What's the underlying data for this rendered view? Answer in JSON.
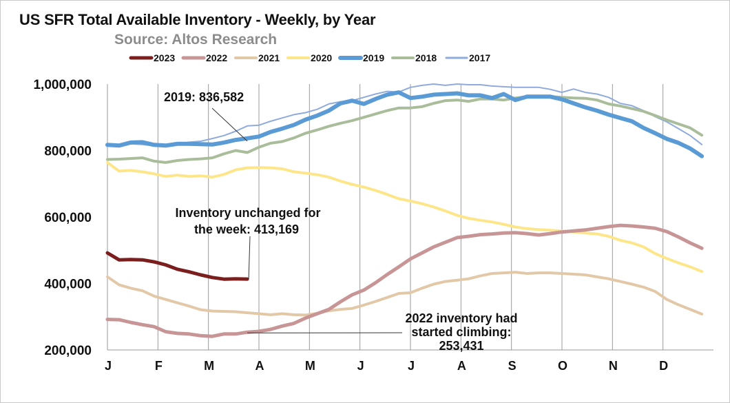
{
  "header": {
    "title": "US SFR Total Available Inventory - Weekly, by Year",
    "subtitle": "Source: Altos Research"
  },
  "chart_data": {
    "type": "line",
    "title": "US SFR Total Available Inventory - Weekly, by Year",
    "subtitle": "Source: Altos Research",
    "ylim": [
      200000,
      1000000
    ],
    "yticks": [
      200000,
      400000,
      600000,
      800000,
      1000000
    ],
    "ytick_labels": [
      "200,000",
      "400,000",
      "600,000",
      "800,000",
      "1,000,000"
    ],
    "xlim": [
      0,
      52
    ],
    "xtick_labels": [
      "J",
      "F",
      "M",
      "A",
      "M",
      "J",
      "J",
      "A",
      "S",
      "O",
      "N",
      "D"
    ],
    "x_unit": "week of year",
    "grid": "vertical month lines",
    "legend_position": "top",
    "series": [
      {
        "name": "2023",
        "color": "#7a1e1e",
        "width": 5,
        "x": [
          0,
          1,
          2,
          3,
          4,
          5,
          6,
          7,
          8,
          9,
          10,
          11,
          12
        ],
        "values": [
          492000,
          471000,
          472000,
          471000,
          465000,
          456000,
          443000,
          435000,
          426000,
          418000,
          413000,
          414000,
          413169
        ]
      },
      {
        "name": "2022",
        "color": "#c89596",
        "width": 5,
        "x": [
          0,
          1,
          2,
          3,
          4,
          5,
          6,
          7,
          8,
          9,
          10,
          11,
          12,
          13,
          14,
          15,
          16,
          17,
          18,
          19,
          20,
          21,
          22,
          23,
          24,
          25,
          26,
          27,
          28,
          29,
          30,
          31,
          32,
          33,
          34,
          35,
          36,
          37,
          38,
          39,
          40,
          41,
          42,
          43,
          44,
          45,
          46,
          47,
          48,
          49,
          50,
          51
        ],
        "values": [
          292000,
          291000,
          283000,
          276000,
          270000,
          255000,
          250000,
          248000,
          243000,
          241000,
          248000,
          248000,
          253431,
          256000,
          262000,
          272000,
          280000,
          296000,
          309000,
          322000,
          345000,
          366000,
          380000,
          402000,
          427000,
          450000,
          474000,
          492000,
          510000,
          524000,
          538000,
          542000,
          547000,
          549000,
          552000,
          553000,
          550000,
          546000,
          550000,
          555000,
          558000,
          561000,
          566000,
          571000,
          575000,
          573000,
          570000,
          566000,
          556000,
          540000,
          522000,
          506000
        ]
      },
      {
        "name": "2021",
        "color": "#e3c8a8",
        "width": 4,
        "x": [
          0,
          1,
          2,
          3,
          4,
          5,
          6,
          7,
          8,
          9,
          10,
          11,
          12,
          13,
          14,
          15,
          16,
          17,
          18,
          19,
          20,
          21,
          22,
          23,
          24,
          25,
          26,
          27,
          28,
          29,
          30,
          31,
          32,
          33,
          34,
          35,
          36,
          37,
          38,
          39,
          40,
          41,
          42,
          43,
          44,
          45,
          46,
          47,
          48,
          49,
          50,
          51
        ],
        "values": [
          420000,
          396000,
          386000,
          378000,
          362000,
          352000,
          342000,
          332000,
          321000,
          317000,
          316000,
          315000,
          312000,
          309000,
          306000,
          309000,
          306000,
          305000,
          310000,
          318000,
          322000,
          325000,
          335000,
          346000,
          358000,
          370000,
          372000,
          386000,
          398000,
          406000,
          410000,
          414000,
          423000,
          430000,
          432000,
          434000,
          430000,
          432000,
          432000,
          430000,
          428000,
          426000,
          420000,
          414000,
          406000,
          398000,
          389000,
          376000,
          352000,
          336000,
          322000,
          308000
        ]
      },
      {
        "name": "2020",
        "color": "#fde68a",
        "width": 4,
        "x": [
          0,
          1,
          2,
          3,
          4,
          5,
          6,
          7,
          8,
          9,
          10,
          11,
          12,
          13,
          14,
          15,
          16,
          17,
          18,
          19,
          20,
          21,
          22,
          23,
          24,
          25,
          26,
          27,
          28,
          29,
          30,
          31,
          32,
          33,
          34,
          35,
          36,
          37,
          38,
          39,
          40,
          41,
          42,
          43,
          44,
          45,
          46,
          47,
          48,
          49,
          50,
          51
        ],
        "values": [
          764000,
          738000,
          740000,
          736000,
          730000,
          722000,
          726000,
          722000,
          724000,
          720000,
          728000,
          742000,
          748000,
          749000,
          748000,
          745000,
          736000,
          732000,
          727000,
          720000,
          708000,
          698000,
          690000,
          680000,
          668000,
          655000,
          648000,
          640000,
          630000,
          618000,
          605000,
          596000,
          590000,
          585000,
          578000,
          570000,
          565000,
          562000,
          560000,
          558000,
          555000,
          552000,
          549000,
          542000,
          530000,
          522000,
          510000,
          490000,
          475000,
          462000,
          450000,
          436000
        ]
      },
      {
        "name": "2019",
        "color": "#5b9bd5",
        "width": 6,
        "x": [
          0,
          1,
          2,
          3,
          4,
          5,
          6,
          7,
          8,
          9,
          10,
          11,
          12,
          13,
          14,
          15,
          16,
          17,
          18,
          19,
          20,
          21,
          22,
          23,
          24,
          25,
          26,
          27,
          28,
          29,
          30,
          31,
          32,
          33,
          34,
          35,
          36,
          37,
          38,
          39,
          40,
          41,
          42,
          43,
          44,
          45,
          46,
          47,
          48,
          49,
          50,
          51
        ],
        "values": [
          817000,
          815000,
          824000,
          825000,
          817000,
          815000,
          820000,
          820000,
          819000,
          818000,
          824000,
          832000,
          836582,
          842000,
          856000,
          866000,
          877000,
          893000,
          905000,
          920000,
          942000,
          950000,
          940000,
          955000,
          968000,
          975000,
          958000,
          962000,
          968000,
          970000,
          972000,
          966000,
          966000,
          958000,
          970000,
          952000,
          962000,
          962000,
          962000,
          954000,
          942000,
          930000,
          920000,
          908000,
          898000,
          888000,
          868000,
          852000,
          835000,
          823000,
          806000,
          783000
        ]
      },
      {
        "name": "2018",
        "color": "#a9bd9b",
        "width": 4,
        "x": [
          0,
          1,
          2,
          3,
          4,
          5,
          6,
          7,
          8,
          9,
          10,
          11,
          12,
          13,
          14,
          15,
          16,
          17,
          18,
          19,
          20,
          21,
          22,
          23,
          24,
          25,
          26,
          27,
          28,
          29,
          30,
          31,
          32,
          33,
          34,
          35,
          36,
          37,
          38,
          39,
          40,
          41,
          42,
          43,
          44,
          45,
          46,
          47,
          48,
          49,
          50,
          51
        ],
        "values": [
          773000,
          774000,
          776000,
          778000,
          768000,
          764000,
          770000,
          773000,
          775000,
          778000,
          790000,
          800000,
          794000,
          810000,
          822000,
          827000,
          838000,
          852000,
          862000,
          873000,
          882000,
          890000,
          900000,
          910000,
          920000,
          928000,
          928000,
          932000,
          942000,
          950000,
          952000,
          948000,
          955000,
          955000,
          952000,
          958000,
          962000,
          962000,
          962000,
          960000,
          958000,
          957000,
          952000,
          940000,
          934000,
          926000,
          918000,
          905000,
          892000,
          880000,
          868000,
          846000
        ]
      },
      {
        "name": "2017",
        "color": "#8faadc",
        "width": 2,
        "x": [
          0,
          1,
          2,
          3,
          4,
          5,
          6,
          7,
          8,
          9,
          10,
          11,
          12,
          13,
          14,
          15,
          16,
          17,
          18,
          19,
          20,
          21,
          22,
          23,
          24,
          25,
          26,
          27,
          28,
          29,
          30,
          31,
          32,
          33,
          34,
          35,
          36,
          37,
          38,
          39,
          40,
          41,
          42,
          43,
          44,
          45,
          46,
          47,
          48,
          49,
          50,
          51
        ],
        "values": [
          815000,
          818000,
          820000,
          818000,
          814000,
          816000,
          820000,
          825000,
          828000,
          836000,
          845000,
          858000,
          874000,
          876000,
          888000,
          898000,
          908000,
          914000,
          924000,
          940000,
          947000,
          950000,
          960000,
          970000,
          978000,
          976000,
          990000,
          996000,
          1000000,
          996000,
          1000000,
          998000,
          998000,
          994000,
          992000,
          990000,
          990000,
          990000,
          984000,
          975000,
          985000,
          975000,
          970000,
          960000,
          942000,
          935000,
          920000,
          902000,
          886000,
          866000,
          845000,
          818000
        ]
      }
    ],
    "annotations": [
      {
        "text_lines": [
          "2019:  836,582"
        ],
        "x": 12,
        "y": 836582
      },
      {
        "text_lines": [
          "Inventory unchanged for",
          "the week: 413,169"
        ],
        "x": 12,
        "y": 413169
      },
      {
        "text_lines": [
          "2022 inventory had",
          "started climbing:",
          "253,431"
        ],
        "x": 12,
        "y": 253431
      }
    ]
  }
}
